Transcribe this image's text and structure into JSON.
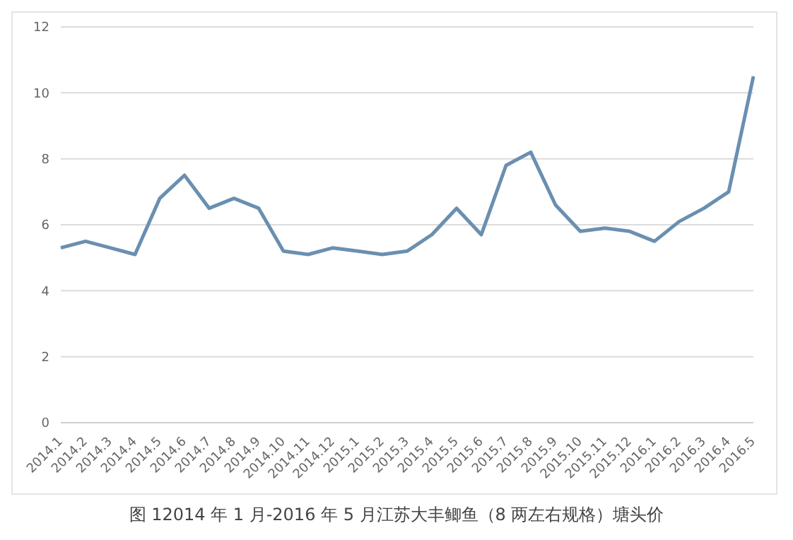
{
  "chart_data": {
    "type": "line",
    "title": "图 12014 年 1 月-2016 年 5 月江苏大丰鲫鱼（8 两左右规格）塘头价",
    "categories": [
      "2014.1",
      "2014.2",
      "2014.3",
      "2014.4",
      "2014.5",
      "2014.6",
      "2014.7",
      "2014.8",
      "2014.9",
      "2014.10",
      "2014.11",
      "2014.12",
      "2015.1",
      "2015.2",
      "2015.3",
      "2015.4",
      "2015.5",
      "2015.6",
      "2015.7",
      "2015.8",
      "2015.9",
      "2015.10",
      "2015.11",
      "2015.12",
      "2016.1",
      "2016.2",
      "2016.3",
      "2016.4",
      "2016.5"
    ],
    "series": [
      {
        "color": "#6a8fb0",
        "values": [
          5.3,
          5.5,
          5.3,
          5.1,
          6.8,
          7.5,
          6.5,
          6.8,
          6.5,
          5.2,
          5.1,
          5.3,
          5.2,
          5.1,
          5.2,
          5.7,
          6.5,
          5.7,
          7.8,
          8.2,
          6.6,
          5.8,
          5.9,
          5.8,
          5.5,
          6.1,
          6.5,
          7.0,
          10.5
        ]
      }
    ],
    "ylim": [
      0,
      12
    ],
    "yticks": [
      0,
      2,
      4,
      6,
      8,
      10,
      12
    ],
    "grid": "y",
    "legend": false,
    "marker": "none",
    "line_style": "solid"
  }
}
